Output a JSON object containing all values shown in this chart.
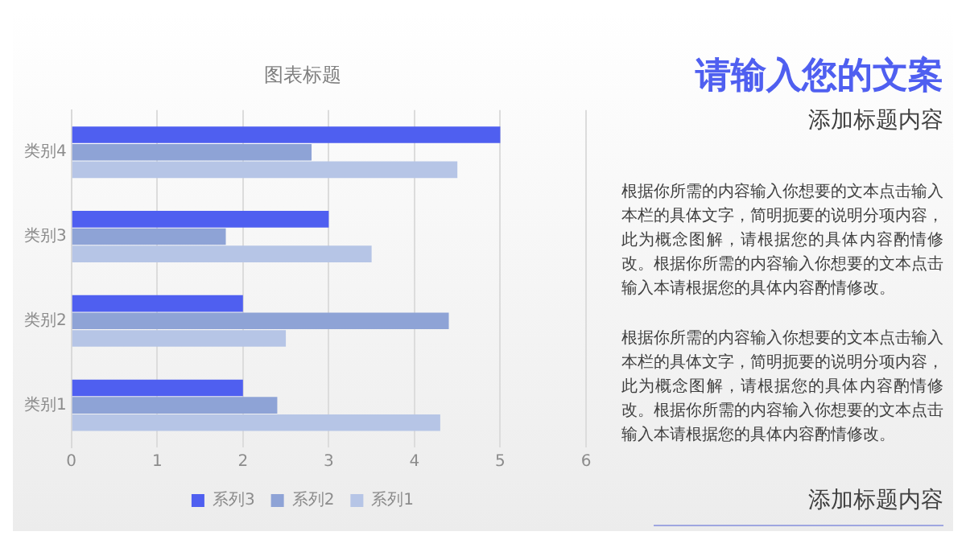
{
  "chart_data": {
    "type": "bar",
    "orientation": "horizontal",
    "title": "图表标题",
    "categories": [
      "类别4",
      "类别3",
      "类别2",
      "类别1"
    ],
    "series": [
      {
        "name": "系列3",
        "color": "#4f5ff0",
        "values": [
          5,
          3,
          2,
          2
        ]
      },
      {
        "name": "系列2",
        "color": "#8ea3d6",
        "values": [
          2.8,
          1.8,
          4.4,
          2.4
        ]
      },
      {
        "name": "系列1",
        "color": "#b6c5e6",
        "values": [
          4.5,
          3.5,
          2.5,
          4.3
        ]
      }
    ],
    "xlim": [
      0,
      6
    ],
    "xticks": [
      0,
      1,
      2,
      3,
      4,
      5,
      6
    ],
    "grid": "x",
    "legend": "bottom",
    "annotations": [
      "请输入您的文案",
      "添加标题内容",
      "根据你所需的内容输入你想要的文本点击输入本栏的具体文字，简明扼要的说明分项内容，此为概念图解，请根据您的具体内容酌情修改。根据你所需的内容输入你想要的文本点击输入本请根据您的具体内容酌情修改。",
      "根据你所需的内容输入你想要的文本点击输入本栏的具体文字，简明扼要的说明分项内容，此为概念图解，请根据您的具体内容酌情修改。根据你所需的内容输入你想要的文本点击输入本请根据您的具体内容酌情修改。",
      "添加标题内容"
    ]
  }
}
